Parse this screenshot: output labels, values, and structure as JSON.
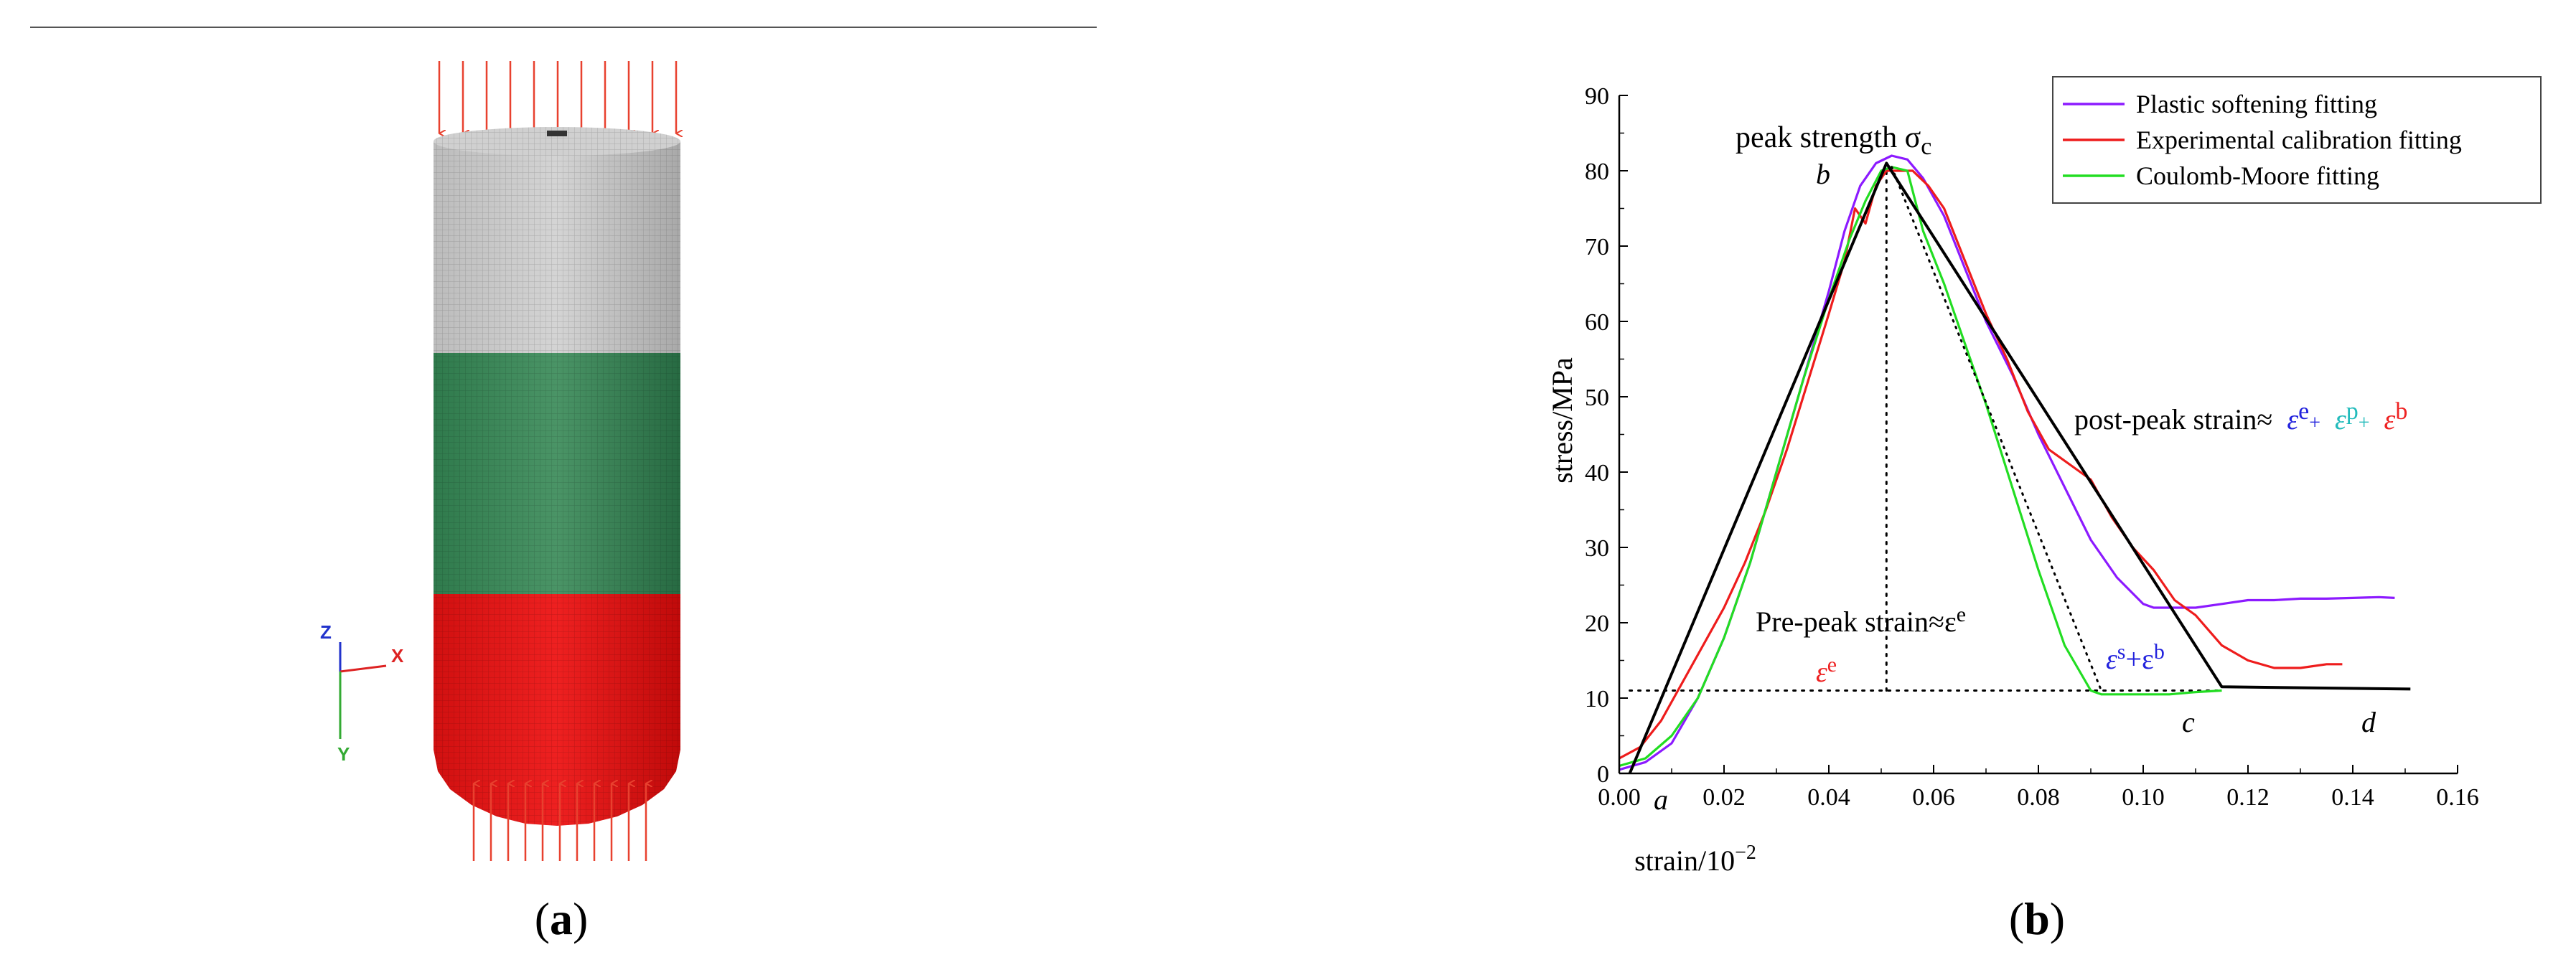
{
  "panel_a": {
    "label": "a",
    "axes_triad": {
      "z": "Z",
      "x": "X",
      "y": "Y"
    },
    "colors": {
      "top": "#c9c9c9",
      "middle": "#3e8a5c",
      "bottom": "#e01515",
      "load_arrow": "#e8412f"
    }
  },
  "panel_b": {
    "label": "b"
  },
  "chart_data": {
    "type": "line",
    "xlabel": "strain/10",
    "xlabel_exp": "−2",
    "ylabel": "stress/MPa",
    "xlim": [
      0,
      0.16
    ],
    "ylim": [
      0,
      90
    ],
    "x_ticks": [
      "0.00",
      "0.02",
      "0.04",
      "0.06",
      "0.08",
      "0.10",
      "0.12",
      "0.14",
      "0.16"
    ],
    "y_ticks": [
      "0",
      "10",
      "20",
      "30",
      "40",
      "50",
      "60",
      "70",
      "80",
      "90"
    ],
    "legend_position": "top-right",
    "series": [
      {
        "name": "Plastic softening fitting",
        "color": "#8c1aff",
        "x": [
          0.0,
          0.005,
          0.01,
          0.015,
          0.02,
          0.025,
          0.03,
          0.035,
          0.04,
          0.043,
          0.046,
          0.049,
          0.052,
          0.055,
          0.058,
          0.062,
          0.066,
          0.07,
          0.075,
          0.08,
          0.085,
          0.09,
          0.095,
          0.1,
          0.102,
          0.105,
          0.11,
          0.115,
          0.12,
          0.125,
          0.13,
          0.135,
          0.14,
          0.145,
          0.148
        ],
        "y": [
          0.5,
          1.5,
          4,
          10,
          18,
          28,
          40,
          52,
          64,
          72,
          78,
          81,
          82,
          81.5,
          79,
          74,
          67,
          60,
          53,
          45,
          38,
          31,
          26,
          22.5,
          22,
          22,
          22,
          22.5,
          23,
          23,
          23.2,
          23.2,
          23.3,
          23.4,
          23.3
        ]
      },
      {
        "name": "Experimental calibration fitting",
        "color": "#ee1c1c",
        "x": [
          0.0,
          0.004,
          0.008,
          0.012,
          0.016,
          0.02,
          0.024,
          0.028,
          0.032,
          0.036,
          0.04,
          0.043,
          0.045,
          0.047,
          0.049,
          0.051,
          0.053,
          0.056,
          0.059,
          0.062,
          0.066,
          0.07,
          0.074,
          0.078,
          0.082,
          0.086,
          0.09,
          0.094,
          0.098,
          0.102,
          0.106,
          0.11,
          0.115,
          0.12,
          0.125,
          0.13,
          0.135,
          0.138
        ],
        "y": [
          2,
          3.5,
          7,
          12,
          17,
          22,
          28,
          35,
          43,
          52,
          61,
          68,
          75,
          73,
          78,
          80,
          80,
          80,
          78,
          75,
          68,
          61,
          55,
          48,
          43,
          41,
          39,
          34,
          30,
          27,
          23,
          21,
          17,
          15,
          14,
          14,
          14.5,
          14.5
        ]
      },
      {
        "name": "Coulomb-Moore fitting",
        "color": "#22dd22",
        "x": [
          0.0,
          0.005,
          0.01,
          0.015,
          0.02,
          0.025,
          0.03,
          0.035,
          0.04,
          0.044,
          0.047,
          0.05,
          0.052,
          0.055,
          0.058,
          0.062,
          0.066,
          0.07,
          0.075,
          0.08,
          0.085,
          0.09,
          0.092,
          0.095,
          0.1,
          0.105,
          0.11,
          0.115
        ],
        "y": [
          1,
          2,
          5,
          10,
          18,
          28,
          40,
          52,
          63,
          71,
          76,
          80,
          80.5,
          80,
          72,
          65,
          57,
          49,
          38,
          27,
          17,
          11,
          10.5,
          10.5,
          10.5,
          10.5,
          10.8,
          11
        ]
      },
      {
        "name": "",
        "color": "#000000",
        "x": [
          0.002,
          0.051,
          0.115,
          0.151
        ],
        "y": [
          0,
          81,
          11.5,
          11.2
        ]
      }
    ],
    "guides": {
      "peak_vertical": {
        "x": 0.051,
        "y": [
          11,
          81
        ]
      },
      "residual_horizontal": {
        "x": [
          0.002,
          0.115
        ],
        "y": 11
      },
      "softening_dotted": {
        "x": [
          0.052,
          0.092
        ],
        "y": [
          80.5,
          11
        ]
      }
    },
    "annotations": {
      "peak": "peak strength σ",
      "peak_sub": "c",
      "point_a": "a",
      "point_b": "b",
      "point_c": "c",
      "point_d": "d",
      "post_peak": "post-peak strain≈",
      "post_peak_terms": [
        {
          "sym": "ε",
          "sup": "e",
          "color": "#2222dd"
        },
        {
          "sym": "ε",
          "sup": "p",
          "color": "#22bbbb"
        },
        {
          "sym": "ε",
          "sup": "b",
          "color": "#ee2222"
        }
      ],
      "plus": "+",
      "pre_peak": "Pre-peak strain≈ε",
      "pre_peak_sup": "e",
      "eps_e_red": "ε",
      "eps_e_red_sup": "e",
      "eps_sb": "ε",
      "eps_sb_sup1": "s",
      "eps_sb_plus": "+ε",
      "eps_sb_sup2": "b"
    }
  }
}
